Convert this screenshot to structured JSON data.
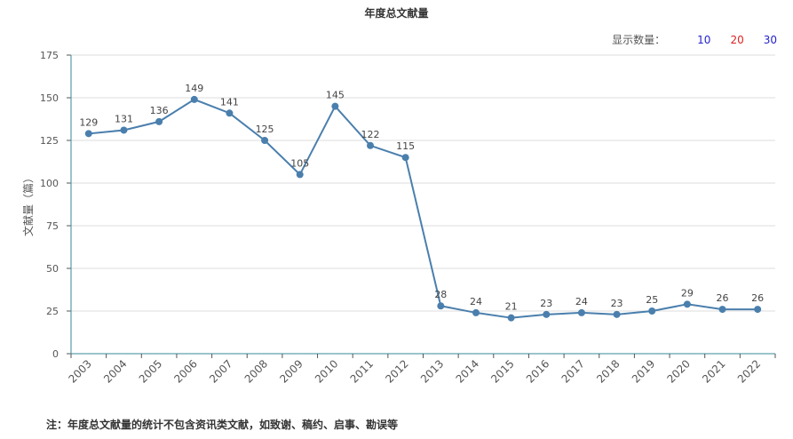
{
  "count_switch": {
    "label": "显示数量：",
    "options": [
      {
        "label": "10",
        "color": "#2222cc"
      },
      {
        "label": "20",
        "color": "#dd2222"
      },
      {
        "label": "30",
        "color": "#2222cc"
      }
    ]
  },
  "note": "注：年度总文献量的统计不包含资讯类文献，如致谢、稿约、启事、勘误等",
  "chart_data": {
    "type": "line",
    "title": "年度总文献量",
    "ylabel": "文献量（篇）",
    "xlabel": "",
    "ylim": [
      0,
      175
    ],
    "yticks": [
      0,
      25,
      50,
      75,
      100,
      125,
      150,
      175
    ],
    "grid": true,
    "line_color": "#4a7fad",
    "categories": [
      "2003",
      "2004",
      "2005",
      "2006",
      "2007",
      "2008",
      "2009",
      "2010",
      "2011",
      "2012",
      "2013",
      "2014",
      "2015",
      "2016",
      "2017",
      "2018",
      "2019",
      "2020",
      "2021",
      "2022"
    ],
    "series": [
      {
        "values": [
          129,
          131,
          136,
          149,
          141,
          125,
          105,
          145,
          122,
          115,
          28,
          24,
          21,
          23,
          24,
          23,
          25,
          29,
          26,
          26
        ]
      }
    ]
  }
}
